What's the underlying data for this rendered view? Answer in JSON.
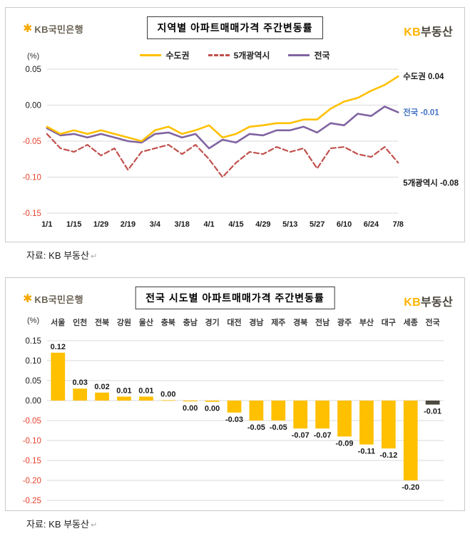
{
  "page": {
    "paragraph_mark": "↵"
  },
  "branding": {
    "logo_symbol": "✱",
    "bank_name": "KB국민은행",
    "brand_kb": "KB",
    "brand_suffix": "부동산"
  },
  "colors": {
    "grid": "#d9d9d9",
    "negative_tick": "#e8432e"
  },
  "chart_data": [
    {
      "type": "line",
      "title": "지역별 아파트매매가격 주간변동률",
      "ylabel": "(%)",
      "xlabel": "",
      "ylim": [
        -0.15,
        0.05
      ],
      "yticks": [
        0.05,
        0,
        -0.05,
        -0.1,
        -0.15
      ],
      "grid": true,
      "legend_position": "top",
      "x_tick_labels": [
        "1/1",
        "1/15",
        "1/29",
        "2/19",
        "3/4",
        "3/18",
        "4/1",
        "4/15",
        "4/29",
        "5/13",
        "5/27",
        "6/10",
        "6/24",
        "7/8"
      ],
      "series": [
        {
          "name": "수도권",
          "key": "metro-area",
          "color": "#FFC000",
          "dash": false,
          "z": 3,
          "end_value": 0.04,
          "end_label": "수도권 0.04",
          "end_label_at": 0.04,
          "end_label_color": "#1a1a1a",
          "values": [
            -0.03,
            -0.04,
            -0.035,
            -0.04,
            -0.035,
            -0.04,
            -0.045,
            -0.05,
            -0.035,
            -0.03,
            -0.04,
            -0.035,
            -0.028,
            -0.045,
            -0.04,
            -0.03,
            -0.028,
            -0.025,
            -0.025,
            -0.02,
            -0.02,
            -0.005,
            0.005,
            0.01,
            0.02,
            0.028,
            0.04
          ]
        },
        {
          "name": "5개광역시",
          "key": "five-metro-cities",
          "color": "#C0504D",
          "dash": true,
          "z": 1,
          "end_value": -0.08,
          "end_label": "5개광역시 -0.08",
          "end_label_at": -0.108,
          "end_label_color": "#1a1a1a",
          "values": [
            -0.04,
            -0.06,
            -0.065,
            -0.055,
            -0.07,
            -0.06,
            -0.09,
            -0.065,
            -0.06,
            -0.055,
            -0.068,
            -0.055,
            -0.075,
            -0.1,
            -0.08,
            -0.065,
            -0.068,
            -0.058,
            -0.065,
            -0.06,
            -0.088,
            -0.06,
            -0.058,
            -0.068,
            -0.072,
            -0.058,
            -0.08
          ]
        },
        {
          "name": "전국",
          "key": "nationwide",
          "color": "#8064A2",
          "dash": false,
          "z": 2,
          "end_value": -0.01,
          "end_label": "전국 -0.01",
          "end_label_at": -0.01,
          "end_label_color": "#4472C4",
          "values": [
            -0.032,
            -0.042,
            -0.04,
            -0.045,
            -0.04,
            -0.045,
            -0.05,
            -0.052,
            -0.04,
            -0.038,
            -0.045,
            -0.04,
            -0.06,
            -0.048,
            -0.052,
            -0.04,
            -0.042,
            -0.035,
            -0.035,
            -0.03,
            -0.038,
            -0.025,
            -0.028,
            -0.012,
            -0.015,
            -0.002,
            -0.01
          ]
        }
      ],
      "source": "자료: KB 부동산"
    },
    {
      "type": "bar",
      "title": "전국 시도별 아파트매매가격 주간변동률",
      "ylabel": "(%)",
      "xlabel": "",
      "ylim": [
        -0.25,
        0.15
      ],
      "yticks": [
        0.15,
        0.1,
        0.05,
        0,
        -0.05,
        -0.1,
        -0.15,
        -0.2,
        -0.25
      ],
      "grid": true,
      "categories": [
        "서울",
        "인천",
        "전북",
        "강원",
        "울산",
        "충북",
        "충남",
        "경기",
        "대전",
        "경남",
        "제주",
        "경북",
        "전남",
        "광주",
        "부산",
        "대구",
        "세종",
        "전국"
      ],
      "values": [
        0.12,
        0.03,
        0.02,
        0.01,
        0.01,
        0.001,
        -0.002,
        -0.003,
        -0.03,
        -0.05,
        -0.05,
        -0.07,
        -0.07,
        -0.09,
        -0.11,
        -0.12,
        -0.2,
        -0.01
      ],
      "labels": [
        "0.12",
        "0.03",
        "0.02",
        "0.01",
        "0.01",
        "0.00",
        "0.00",
        "0.00",
        "-0.03",
        "-0.05",
        "-0.05",
        "-0.07",
        "-0.07",
        "-0.09",
        "-0.11",
        "-0.12",
        "-0.20",
        "-0.01"
      ],
      "bar_color": "#FFC000",
      "highlight_last": true,
      "last_bar_color": "#4c4a3f",
      "source": "자료: KB 부동산"
    }
  ]
}
